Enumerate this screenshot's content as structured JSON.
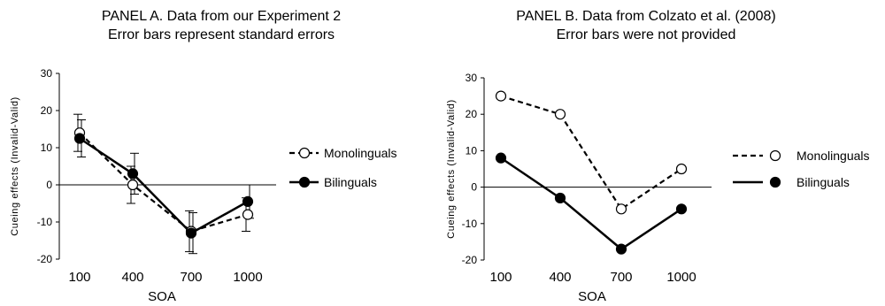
{
  "chart_data": [
    {
      "type": "line",
      "title": "PANEL A. Data from our Experiment 2",
      "subtitle": "Error bars represent standard errors",
      "xlabel": "SOA",
      "ylabel": "Cueing effects (Invalid-Valid)",
      "categories": [
        "100",
        "400",
        "700",
        "1000"
      ],
      "ylim": [
        -20,
        30
      ],
      "yticks": [
        "30",
        "20",
        "10",
        "0",
        "-10",
        "-20"
      ],
      "series": [
        {
          "name": "Monolinguals",
          "style": "dashed",
          "marker": "open-circle",
          "values": [
            14,
            0,
            -12.5,
            -8
          ],
          "errors": [
            5,
            5,
            5.5,
            4.5
          ]
        },
        {
          "name": "Bilinguals",
          "style": "solid",
          "marker": "filled-circle",
          "values": [
            12.5,
            3,
            -13,
            -4.5
          ],
          "errors": [
            5,
            5.5,
            5.5,
            4.5
          ]
        }
      ],
      "legend_position": "right",
      "grid": false
    },
    {
      "type": "line",
      "title": "PANEL B. Data from Colzato et al. (2008)",
      "subtitle": "Error bars were not provided",
      "xlabel": "SOA",
      "ylabel": "Cueing effects (Invalid-Valid)",
      "categories": [
        "100",
        "400",
        "700",
        "1000"
      ],
      "ylim": [
        -20,
        30
      ],
      "yticks": [
        "30",
        "20",
        "10",
        "0",
        "-10",
        "-20"
      ],
      "series": [
        {
          "name": "Monolinguals",
          "style": "dashed",
          "marker": "open-circle",
          "values": [
            25,
            20,
            -6,
            5
          ]
        },
        {
          "name": "Bilinguals",
          "style": "solid",
          "marker": "filled-circle",
          "values": [
            8,
            -3,
            -17,
            -6
          ]
        }
      ],
      "legend_position": "right",
      "grid": false
    }
  ]
}
